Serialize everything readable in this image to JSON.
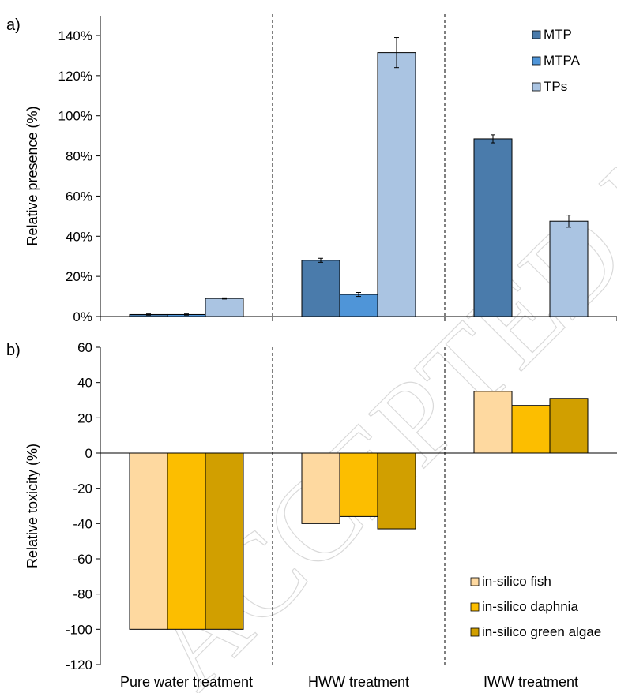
{
  "panel_a_label": "a)",
  "panel_b_label": "b)",
  "watermark": "ACCEPTED MANUSCRIPT",
  "colors": {
    "MTP": "#4a7bab",
    "MTPA": "#4f95d8",
    "TPs": "#aac4e2",
    "fish": "#fed9a0",
    "daphnia": "#fcbe00",
    "algae": "#d19f00"
  },
  "chart_data": [
    {
      "type": "bar",
      "panel": "a)",
      "categories": [
        "Pure water treatment",
        "HWW treatment",
        "IWW treatment"
      ],
      "ylabel": "Relative presence (%)",
      "ylim": [
        0,
        140
      ],
      "yticks": [
        0,
        20,
        40,
        60,
        80,
        100,
        120,
        140
      ],
      "ytick_labels": [
        "0%",
        "20%",
        "40%",
        "60%",
        "80%",
        "100%",
        "120%",
        "140%"
      ],
      "legend_position": "top-right",
      "series": [
        {
          "name": "MTP",
          "values": [
            1,
            28,
            88.5
          ],
          "errors": [
            0.3,
            1,
            2
          ]
        },
        {
          "name": "MTPA",
          "values": [
            1,
            11,
            null
          ],
          "errors": [
            0.3,
            1,
            null
          ]
        },
        {
          "name": "TPs",
          "values": [
            9,
            131.5,
            47.5
          ],
          "errors": [
            0.3,
            7.5,
            3
          ]
        }
      ]
    },
    {
      "type": "bar",
      "panel": "b)",
      "categories": [
        "Pure water treatment",
        "HWW treatment",
        "IWW treatment"
      ],
      "ylabel": "Relative toxicity (%)",
      "ylim": [
        -120,
        60
      ],
      "yticks": [
        -120,
        -100,
        -80,
        -60,
        -40,
        -20,
        0,
        20,
        40,
        60
      ],
      "legend_position": "bottom-right",
      "series": [
        {
          "name": "in-silico fish",
          "values": [
            -100,
            -40,
            35
          ]
        },
        {
          "name": "in-silico daphnia",
          "values": [
            -100,
            -36,
            27
          ]
        },
        {
          "name": "in-silico green algae",
          "values": [
            -100,
            -43,
            31
          ]
        }
      ]
    }
  ]
}
